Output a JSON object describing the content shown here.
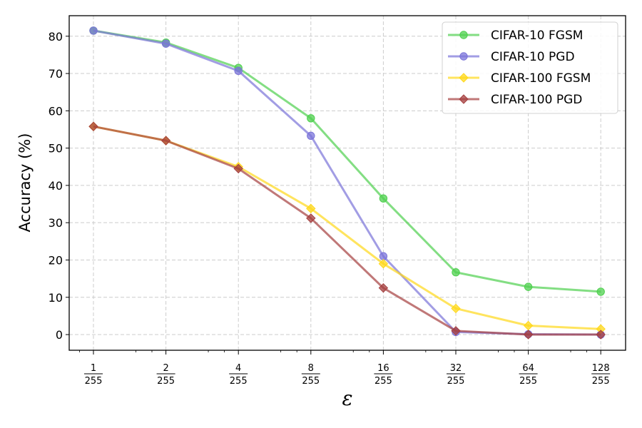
{
  "chart_data": {
    "type": "line",
    "title": "",
    "xlabel": "ε",
    "ylabel": "Accuracy (%)",
    "x_scale": "log2",
    "x": [
      {
        "num": "1",
        "den": "255"
      },
      {
        "num": "2",
        "den": "255"
      },
      {
        "num": "4",
        "den": "255"
      },
      {
        "num": "8",
        "den": "255"
      },
      {
        "num": "16",
        "den": "255"
      },
      {
        "num": "32",
        "den": "255"
      },
      {
        "num": "64",
        "den": "255"
      },
      {
        "num": "128",
        "den": "255"
      }
    ],
    "ylim": [
      -4.2,
      85.5
    ],
    "yticks": [
      0,
      10,
      20,
      30,
      40,
      50,
      60,
      70,
      80
    ],
    "grid": true,
    "legend_position": "top-right",
    "series": [
      {
        "name": "CIFAR-10 FGSM",
        "color": "#4fd04f",
        "marker": "circle",
        "values": [
          81.5,
          78.3,
          71.5,
          58.0,
          36.5,
          16.7,
          12.8,
          11.5
        ]
      },
      {
        "name": "CIFAR-10 PGD",
        "color": "#7b74d9",
        "marker": "circle",
        "values": [
          81.5,
          78.0,
          70.7,
          53.3,
          21.0,
          0.7,
          0.1,
          0.0
        ]
      },
      {
        "name": "CIFAR-100 FGSM",
        "color": "#ffd81a",
        "marker": "diamond",
        "values": [
          55.8,
          52.0,
          45.0,
          33.8,
          19.0,
          7.0,
          2.4,
          1.5
        ]
      },
      {
        "name": "CIFAR-100 PGD",
        "color": "#a53f3f",
        "marker": "diamond",
        "values": [
          55.8,
          52.0,
          44.5,
          31.2,
          12.5,
          1.0,
          0.0,
          0.0
        ]
      }
    ]
  }
}
